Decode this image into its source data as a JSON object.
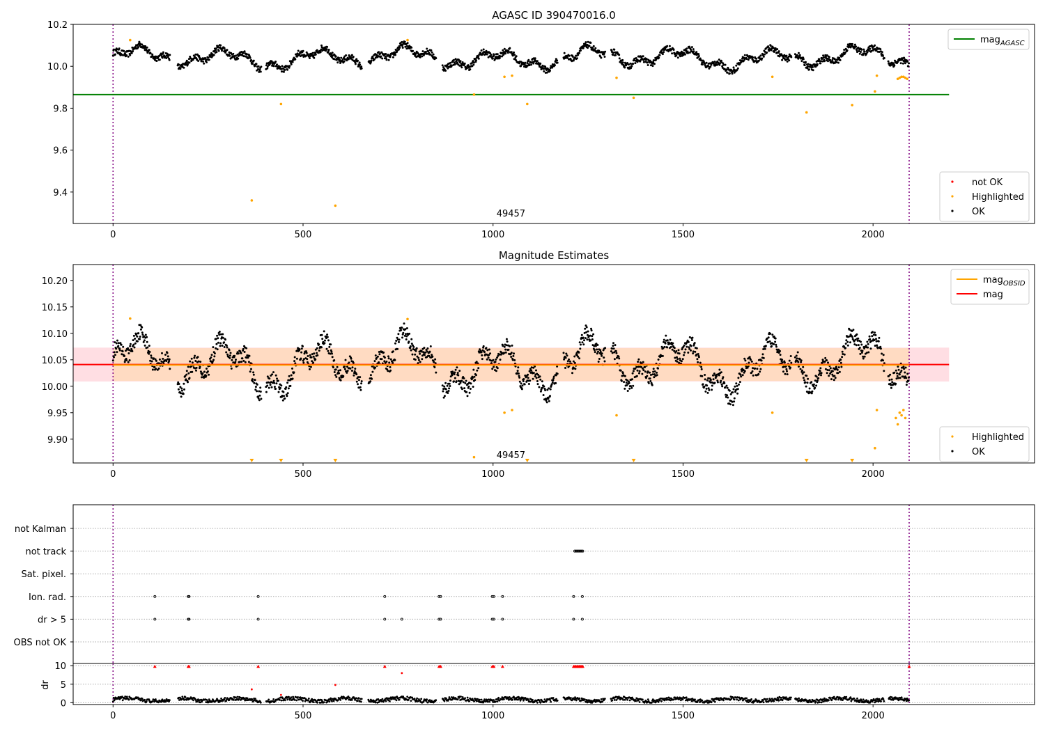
{
  "chart_data": [
    {
      "type": "scatter",
      "title": "AGASC ID 390470016.0",
      "xlim": [
        -105,
        2425
      ],
      "ylim": [
        9.25,
        10.2
      ],
      "xticks": [
        0,
        500,
        1000,
        1500,
        2000
      ],
      "yticks": [
        9.4,
        9.6,
        9.8,
        10.0,
        10.2
      ],
      "vlines": [
        0,
        2095
      ],
      "annotation": {
        "text": "49457",
        "x": 1000,
        "y": 9.29
      },
      "hline": {
        "name": "mag",
        "subscript": "AGASC",
        "y": 9.865,
        "xmax": 2200,
        "color": "#008000"
      },
      "legend_top": [
        {
          "label": "mag",
          "subscript": "AGASC",
          "color": "#008000",
          "kind": "line"
        }
      ],
      "legend_bottom": [
        {
          "label": "not OK",
          "color": "#ff0000",
          "kind": "dot"
        },
        {
          "label": "Highlighted",
          "color": "#ffa500",
          "kind": "dot"
        },
        {
          "label": "OK",
          "color": "#000000",
          "kind": "dot"
        }
      ],
      "baseline": 10.04,
      "highlighted_points": [
        {
          "x": 45,
          "y": 10.125
        },
        {
          "x": 365,
          "y": 9.36
        },
        {
          "x": 442,
          "y": 9.82
        },
        {
          "x": 585,
          "y": 9.335
        },
        {
          "x": 775,
          "y": 10.125
        },
        {
          "x": 950,
          "y": 9.865
        },
        {
          "x": 1030,
          "y": 9.95
        },
        {
          "x": 1050,
          "y": 9.955
        },
        {
          "x": 1090,
          "y": 9.82
        },
        {
          "x": 1325,
          "y": 9.945
        },
        {
          "x": 1370,
          "y": 9.85
        },
        {
          "x": 1735,
          "y": 9.95
        },
        {
          "x": 1825,
          "y": 9.78
        },
        {
          "x": 1945,
          "y": 9.815
        },
        {
          "x": 2005,
          "y": 9.88
        },
        {
          "x": 2010,
          "y": 9.955
        },
        {
          "x": 2065,
          "y": 9.94
        },
        {
          "x": 2070,
          "y": 9.945
        },
        {
          "x": 2075,
          "y": 9.95
        },
        {
          "x": 2080,
          "y": 9.95
        },
        {
          "x": 2085,
          "y": 9.945
        },
        {
          "x": 2090,
          "y": 9.94
        }
      ]
    },
    {
      "type": "scatter",
      "title": "Magnitude Estimates",
      "xlim": [
        -105,
        2425
      ],
      "ylim": [
        9.855,
        10.23
      ],
      "xticks": [
        0,
        500,
        1000,
        1500,
        2000
      ],
      "yticks": [
        9.9,
        9.95,
        10.0,
        10.05,
        10.1,
        10.15,
        10.2
      ],
      "vlines": [
        0,
        2095
      ],
      "annotation": {
        "text": "49457",
        "x": 1000,
        "y": 9.867
      },
      "mag_line": {
        "y": 10.041,
        "xmin": -105,
        "xmax": 2200,
        "color": "#ff0000"
      },
      "mag_band": {
        "low": 10.009,
        "high": 10.073,
        "xmin": -105,
        "xmax": 2200,
        "color": "#ffb6c1"
      },
      "obsid_line": {
        "y": 10.04,
        "xmin": 0,
        "xmax": 2095,
        "color": "#ffa500"
      },
      "obsid_band": {
        "low": 10.01,
        "high": 10.072,
        "xmin": 0,
        "xmax": 2095,
        "color": "#ffdab9"
      },
      "legend_top": [
        {
          "label": "mag",
          "subscript": "OBSID",
          "color": "#ffa500",
          "kind": "line"
        },
        {
          "label": "mag",
          "subscript": "",
          "color": "#ff0000",
          "kind": "line"
        }
      ],
      "legend_bottom": [
        {
          "label": "Highlighted",
          "color": "#ffa500",
          "kind": "dot"
        },
        {
          "label": "OK",
          "color": "#000000",
          "kind": "dot"
        }
      ],
      "baseline": 10.04,
      "highlighted_points": [
        {
          "x": 45,
          "y": 10.128
        },
        {
          "x": 775,
          "y": 10.127
        },
        {
          "x": 950,
          "y": 9.866
        },
        {
          "x": 1030,
          "y": 9.95
        },
        {
          "x": 1050,
          "y": 9.955
        },
        {
          "x": 1325,
          "y": 9.945
        },
        {
          "x": 1735,
          "y": 9.95
        },
        {
          "x": 2005,
          "y": 9.883
        },
        {
          "x": 2010,
          "y": 9.955
        },
        {
          "x": 2060,
          "y": 9.94
        },
        {
          "x": 2065,
          "y": 9.928
        },
        {
          "x": 2070,
          "y": 9.95
        },
        {
          "x": 2075,
          "y": 9.945
        },
        {
          "x": 2080,
          "y": 9.955
        },
        {
          "x": 2085,
          "y": 9.94
        }
      ],
      "lower_limit_markers": [
        365,
        442,
        585,
        1090,
        1370,
        1825,
        1945
      ]
    },
    {
      "type": "scatter",
      "title": "",
      "xlim": [
        -105,
        2425
      ],
      "xticks": [
        0,
        500,
        1000,
        1500,
        2000
      ],
      "vlines": [
        0,
        2095
      ],
      "flag_rows": [
        "not Kalman",
        "not track",
        "Sat. pixel.",
        "Ion. rad.",
        "dr > 5",
        "OBS not OK"
      ],
      "flags": {
        "not Kalman": [],
        "not track": [
          1215,
          1218,
          1221,
          1224,
          1227,
          1230,
          1233,
          1236
        ],
        "Sat. pixel.": [],
        "Ion. rad.": [
          110,
          198,
          200,
          382,
          715,
          858,
          862,
          998,
          1002,
          1025,
          1212,
          1235
        ],
        "dr > 5": [
          110,
          198,
          200,
          382,
          715,
          760,
          858,
          862,
          998,
          1002,
          1025,
          1212,
          1235
        ],
        "OBS not OK": []
      },
      "dr": {
        "ylabel": "dr",
        "ylim": [
          -0.5,
          10.6
        ],
        "yticks": [
          0,
          5,
          10
        ],
        "clipped_points": [
          110,
          198,
          200,
          382,
          715,
          858,
          862,
          998,
          1002,
          1025,
          1212,
          1215,
          1218,
          1221,
          1224,
          1227,
          1230,
          1233,
          1236,
          2095
        ],
        "outliers": [
          {
            "x": 365,
            "y": 3.6
          },
          {
            "x": 442,
            "y": 2.1
          },
          {
            "x": 585,
            "y": 4.8
          },
          {
            "x": 760,
            "y": 8.0
          }
        ],
        "typical": 0.8
      }
    }
  ]
}
